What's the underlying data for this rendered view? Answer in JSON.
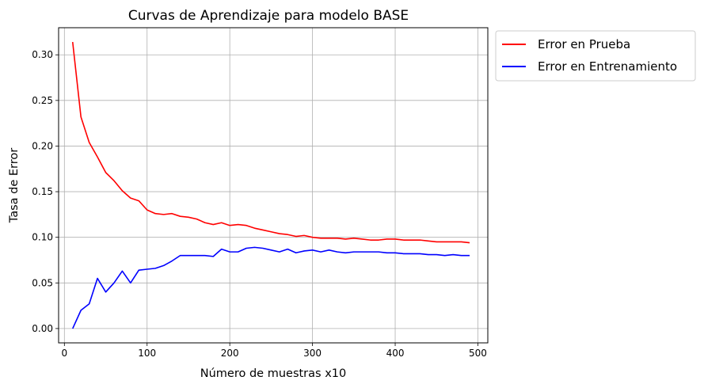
{
  "chart_data": {
    "type": "line",
    "title": "Curvas de Aprendizaje para modelo BASE",
    "xlabel": "Número de muestras x10",
    "ylabel": "Tasa de Error",
    "xlim": [
      -7,
      512
    ],
    "ylim": [
      -0.0157,
      0.3297
    ],
    "xticks": [
      0,
      100,
      200,
      300,
      400,
      500
    ],
    "xtick_labels": [
      "0",
      "100",
      "200",
      "300",
      "400",
      "500"
    ],
    "yticks": [
      0.0,
      0.05,
      0.1,
      0.15,
      0.2,
      0.25,
      0.3
    ],
    "ytick_labels": [
      "0.00",
      "0.05",
      "0.10",
      "0.15",
      "0.20",
      "0.25",
      "0.30"
    ],
    "grid": true,
    "legend_position": "outside-top-right",
    "x": [
      10,
      20,
      30,
      40,
      50,
      60,
      70,
      80,
      90,
      100,
      110,
      120,
      130,
      140,
      150,
      160,
      170,
      180,
      190,
      200,
      210,
      220,
      230,
      240,
      250,
      260,
      270,
      280,
      290,
      300,
      310,
      320,
      330,
      340,
      350,
      360,
      370,
      380,
      390,
      400,
      410,
      420,
      430,
      440,
      450,
      460,
      470,
      480,
      490
    ],
    "series": [
      {
        "name": "Error en Prueba",
        "color": "#ff0000",
        "values": [
          0.314,
          0.232,
          0.204,
          0.188,
          0.171,
          0.162,
          0.151,
          0.143,
          0.14,
          0.13,
          0.126,
          0.125,
          0.126,
          0.123,
          0.122,
          0.12,
          0.116,
          0.114,
          0.116,
          0.113,
          0.114,
          0.113,
          0.11,
          0.108,
          0.106,
          0.104,
          0.103,
          0.101,
          0.102,
          0.1,
          0.099,
          0.099,
          0.099,
          0.098,
          0.099,
          0.098,
          0.097,
          0.097,
          0.098,
          0.098,
          0.097,
          0.097,
          0.097,
          0.096,
          0.095,
          0.095,
          0.095,
          0.095,
          0.094
        ]
      },
      {
        "name": "Error en Entrenamiento",
        "color": "#0000ff",
        "values": [
          0.0,
          0.02,
          0.027,
          0.055,
          0.04,
          0.05,
          0.063,
          0.05,
          0.064,
          0.065,
          0.066,
          0.069,
          0.074,
          0.08,
          0.08,
          0.08,
          0.08,
          0.079,
          0.087,
          0.084,
          0.084,
          0.088,
          0.089,
          0.088,
          0.086,
          0.084,
          0.087,
          0.083,
          0.085,
          0.086,
          0.084,
          0.086,
          0.084,
          0.083,
          0.084,
          0.084,
          0.084,
          0.084,
          0.083,
          0.083,
          0.082,
          0.082,
          0.082,
          0.081,
          0.081,
          0.08,
          0.081,
          0.08,
          0.08
        ]
      }
    ]
  }
}
